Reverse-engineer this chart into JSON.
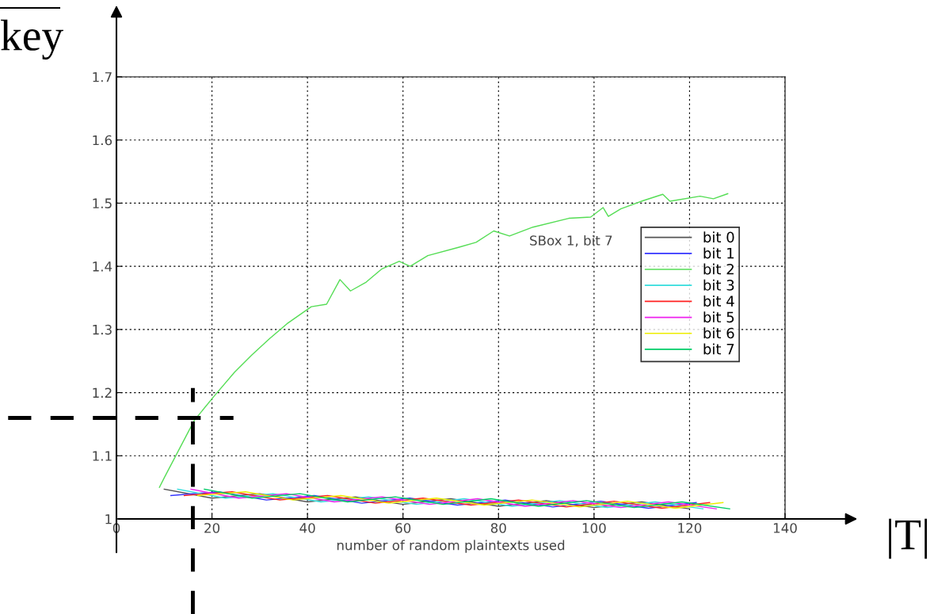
{
  "chart_data": {
    "type": "line",
    "xlabel": "number of random plaintexts used",
    "xlim": [
      0,
      140
    ],
    "xticks": [
      0,
      20,
      40,
      60,
      80,
      100,
      120,
      140
    ],
    "ylim": [
      1,
      1.7
    ],
    "yticks": [
      1,
      1.1,
      1.2,
      1.3,
      1.4,
      1.5,
      1.6,
      1.7
    ],
    "grid": true,
    "legend": "right",
    "line_style": "solid",
    "series": [
      {
        "name": "bit 0",
        "color": "#555555",
        "x": [
          10,
          20,
          30,
          40,
          50,
          60,
          70,
          80,
          90,
          100,
          110,
          120
        ],
        "values": [
          1.047,
          1.033,
          1.04,
          1.027,
          1.035,
          1.023,
          1.032,
          1.02,
          1.029,
          1.018,
          1.027,
          1.016
        ]
      },
      {
        "name": "bit 1",
        "color": "#3333ff",
        "x": [
          11.4,
          21.4,
          31.4,
          41.4,
          51.4,
          61.4,
          71.4,
          81.4,
          91.4,
          101.4,
          111.4,
          121.4
        ],
        "values": [
          1.037,
          1.043,
          1.03,
          1.037,
          1.025,
          1.033,
          1.022,
          1.03,
          1.019,
          1.028,
          1.017,
          1.026
        ]
      },
      {
        "name": "bit 2",
        "color": "#55dd55",
        "x": [
          9,
          10,
          16.3,
          20.4,
          24.7,
          28.4,
          32,
          35.7,
          40.8,
          44,
          46.8,
          49,
          52.3,
          55.6,
          59.2,
          61.5,
          65.2,
          71.6,
          75.3,
          79,
          82.3,
          87.2,
          94.7,
          99.3,
          101.9,
          103,
          105.6,
          110.3,
          114.4,
          115.9,
          122.2,
          125,
          128
        ],
        "values": [
          1.05,
          1.065,
          1.156,
          1.194,
          1.232,
          1.26,
          1.285,
          1.309,
          1.336,
          1.34,
          1.379,
          1.361,
          1.375,
          1.396,
          1.408,
          1.4,
          1.417,
          1.43,
          1.438,
          1.456,
          1.448,
          1.462,
          1.476,
          1.478,
          1.493,
          1.479,
          1.491,
          1.504,
          1.514,
          1.503,
          1.511,
          1.507,
          1.515
        ]
      },
      {
        "name": "bit 3",
        "color": "#33dddd",
        "x": [
          12.8,
          22.8,
          32.8,
          42.8,
          52.8,
          62.8,
          72.8,
          82.8,
          92.8,
          102.8,
          112.8,
          122.8
        ],
        "values": [
          1.047,
          1.033,
          1.04,
          1.027,
          1.035,
          1.023,
          1.032,
          1.02,
          1.029,
          1.018,
          1.027,
          1.016
        ]
      },
      {
        "name": "bit 4",
        "color": "#ff2222",
        "x": [
          14.2,
          24.2,
          34.2,
          44.2,
          54.2,
          64.2,
          74.2,
          84.2,
          94.2,
          104.2,
          114.2,
          124.2
        ],
        "values": [
          1.037,
          1.043,
          1.03,
          1.037,
          1.025,
          1.033,
          1.022,
          1.03,
          1.019,
          1.028,
          1.017,
          1.026
        ]
      },
      {
        "name": "bit 5",
        "color": "#ee22ee",
        "x": [
          15.6,
          25.6,
          35.6,
          45.6,
          55.6,
          65.6,
          75.6,
          85.6,
          95.6,
          105.6,
          115.6,
          125.6
        ],
        "values": [
          1.047,
          1.033,
          1.04,
          1.027,
          1.035,
          1.023,
          1.032,
          1.02,
          1.029,
          1.018,
          1.027,
          1.016
        ]
      },
      {
        "name": "bit 6",
        "color": "#eeee00",
        "x": [
          17,
          27,
          37,
          47,
          57,
          67,
          77,
          87,
          97,
          107,
          117,
          127
        ],
        "values": [
          1.037,
          1.043,
          1.03,
          1.037,
          1.025,
          1.033,
          1.022,
          1.03,
          1.019,
          1.028,
          1.017,
          1.026
        ]
      },
      {
        "name": "bit 7",
        "color": "#00cc66",
        "x": [
          18.4,
          28.4,
          38.4,
          48.4,
          58.4,
          68.4,
          78.4,
          88.4,
          98.4,
          108.4,
          118.4,
          128.4
        ],
        "values": [
          1.047,
          1.033,
          1.04,
          1.027,
          1.035,
          1.023,
          1.032,
          1.02,
          1.029,
          1.018,
          1.027,
          1.016
        ]
      }
    ],
    "ref_lines": [
      {
        "axis": "x",
        "value": 16,
        "color": "#000000",
        "line_style": "dashed"
      },
      {
        "axis": "y",
        "value": 1.16,
        "color": "#000000",
        "line_style": "dashed"
      }
    ],
    "annotations": [
      "SBox 1, bit 7",
      "key",
      "|T|"
    ]
  }
}
